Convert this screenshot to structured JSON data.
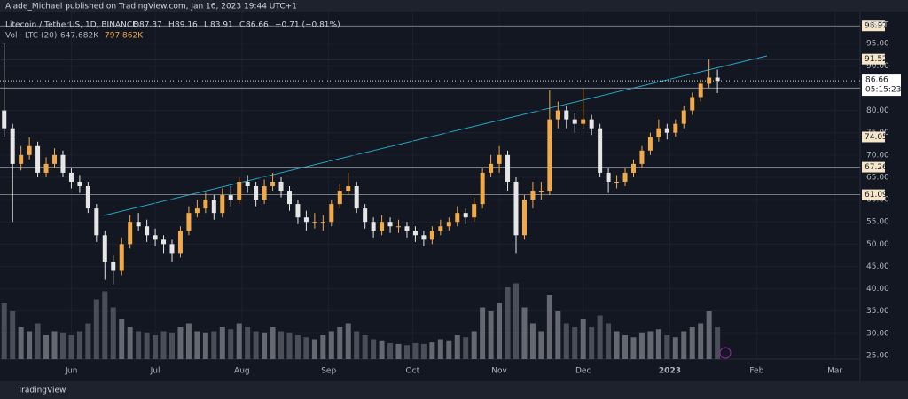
{
  "header": {
    "publisher": "Alade_Michael published on TradingView.com, Jan 16, 2023 19:44 UTC+1",
    "brand": "TradingView"
  },
  "chart_data": {
    "type": "candlestick",
    "symbol": "Litecoin / TetherUS, 1D, BINANCE",
    "legend_values": [
      {
        "label": "O",
        "value": 87.37
      },
      {
        "label": "H",
        "value": 89.16
      },
      {
        "label": "L",
        "value": 83.91
      },
      {
        "label": "C",
        "value": 86.66
      }
    ],
    "change": "−0.71 (−0.81%)",
    "volume_label": "Vol · LTC (20)",
    "volume_ma": "647.682K",
    "volume_last": "797.862K",
    "currency": "USDT",
    "up_color": "#f0a94b",
    "down_color": "#e6e6e6",
    "open": [
      80,
      76,
      68,
      70,
      72,
      66,
      68,
      70,
      66,
      64,
      63,
      58,
      52,
      46,
      44,
      50,
      55,
      54,
      52,
      51,
      50,
      48,
      53,
      57,
      58,
      60,
      57,
      61,
      60,
      64,
      63,
      60,
      63,
      64,
      62,
      59,
      56,
      55,
      55,
      55,
      59,
      62,
      63,
      58,
      55,
      53,
      55,
      54,
      54,
      53,
      52,
      51,
      53,
      54,
      55,
      57,
      56,
      59,
      66,
      68,
      70,
      64,
      52,
      60,
      62,
      62,
      78,
      80,
      78,
      77,
      78,
      76,
      66,
      64,
      64,
      66,
      68,
      71,
      74,
      76,
      75,
      77,
      80,
      83,
      86,
      87.37
    ],
    "high": [
      95,
      77,
      72,
      74,
      73,
      69.5,
      71.5,
      71,
      67,
      65.5,
      64,
      59,
      53,
      47.5,
      51.5,
      56.5,
      57,
      55.5,
      53.5,
      52,
      51,
      54,
      58.5,
      60,
      61.5,
      61,
      62.5,
      63,
      65,
      65.5,
      64,
      64.5,
      66,
      65,
      63,
      60,
      57.5,
      57,
      56.5,
      60,
      63.5,
      66,
      64,
      59,
      56,
      56.5,
      56,
      55.5,
      55,
      54,
      53,
      54,
      55.5,
      56,
      58.5,
      58,
      60.5,
      67,
      70,
      72,
      71,
      65,
      61,
      64,
      64,
      84.5,
      82,
      81,
      79.5,
      85,
      79,
      77,
      67,
      65.5,
      67,
      69,
      72,
      75,
      78,
      77,
      78,
      81,
      84,
      87,
      91.52,
      89.16
    ],
    "low": [
      74,
      55,
      66.5,
      69,
      65,
      65,
      67,
      65,
      62.5,
      61.5,
      57,
      50.5,
      42,
      41,
      43,
      49,
      53,
      50.5,
      49.5,
      48,
      46,
      47,
      52,
      56,
      57,
      55.5,
      56,
      58.5,
      59,
      61.5,
      58.5,
      59,
      62,
      60.5,
      57.5,
      54.5,
      53,
      53.5,
      53,
      54,
      58,
      61,
      57,
      53.5,
      51.5,
      52,
      52.5,
      52.5,
      51.5,
      50.5,
      49.5,
      50,
      52,
      53,
      54,
      54.5,
      55,
      58,
      65,
      66,
      62,
      48,
      51,
      58,
      60,
      61,
      76,
      76,
      75,
      76,
      74.5,
      65,
      61.5,
      62.5,
      63,
      65,
      67,
      70,
      73,
      73.5,
      74,
      76,
      79,
      82,
      85,
      83.91
    ],
    "close": [
      76,
      68,
      70,
      72,
      66,
      68,
      70,
      66,
      64,
      63,
      58,
      52,
      46,
      44,
      50,
      55,
      54,
      52,
      51,
      50,
      48,
      53,
      57,
      58,
      60,
      57,
      61,
      60,
      64,
      63,
      60,
      63,
      64,
      62,
      59,
      56,
      55,
      55,
      55,
      59,
      62,
      63,
      58,
      55,
      53,
      55,
      54,
      54,
      53,
      52,
      51,
      53,
      54,
      55,
      57,
      56,
      59,
      66,
      68,
      70,
      64,
      52,
      60,
      62,
      62,
      78,
      80,
      78,
      77,
      78,
      76,
      66,
      64,
      64,
      66,
      68,
      71,
      74,
      76,
      75,
      77,
      80,
      83,
      86,
      87.37,
      86.66
    ],
    "volume": [
      1400,
      1200,
      800,
      700,
      900,
      600,
      700,
      650,
      600,
      700,
      900,
      1500,
      1700,
      1300,
      1000,
      800,
      700,
      650,
      600,
      700,
      650,
      800,
      900,
      700,
      650,
      700,
      800,
      750,
      900,
      800,
      700,
      650,
      800,
      700,
      650,
      600,
      550,
      500,
      600,
      700,
      800,
      900,
      700,
      600,
      500,
      450,
      400,
      380,
      350,
      400,
      380,
      420,
      500,
      450,
      600,
      550,
      700,
      1300,
      1200,
      1400,
      1800,
      1900,
      1300,
      900,
      700,
      1600,
      1200,
      900,
      800,
      1000,
      800,
      1100,
      900,
      700,
      600,
      550,
      650,
      700,
      750,
      600,
      550,
      700,
      800,
      900,
      1200,
      797.862
    ],
    "xlim": [
      -0.5,
      102
    ],
    "xticks": [
      {
        "value": 8,
        "label": "Jun"
      },
      {
        "value": 18,
        "label": "Jul"
      },
      {
        "value": 28.33,
        "label": "Aug"
      },
      {
        "value": 38.67,
        "label": "Sep"
      },
      {
        "value": 48.67,
        "label": "Oct"
      },
      {
        "value": 59,
        "label": "Nov"
      },
      {
        "value": 69,
        "label": "Dec"
      },
      {
        "value": 79.33,
        "label": "2023"
      },
      {
        "value": 89.67,
        "label": "Feb"
      },
      {
        "value": 99,
        "label": "Mar"
      }
    ],
    "ylim": [
      24.2,
      102.2
    ],
    "yticks": [
      {
        "value": 25,
        "label": "25.00"
      },
      {
        "value": 30,
        "label": "30.00"
      },
      {
        "value": 35,
        "label": "35.00"
      },
      {
        "value": 40,
        "label": "40.00"
      },
      {
        "value": 45,
        "label": "45.00"
      },
      {
        "value": 50,
        "label": "50.00"
      },
      {
        "value": 55,
        "label": "55.00"
      },
      {
        "value": 60,
        "label": "60.00"
      },
      {
        "value": 65,
        "label": "65.00"
      },
      {
        "value": 70,
        "label": "70.00"
      },
      {
        "value": 75,
        "label": "75.00"
      },
      {
        "value": 80,
        "label": "80.00"
      },
      {
        "value": 85,
        "label": "85.00"
      },
      {
        "value": 90,
        "label": "90.00"
      },
      {
        "value": 95,
        "label": "95.00"
      }
    ],
    "levels": [
      98.97,
      91.52,
      85.03,
      74.05,
      67.26,
      61.09
    ],
    "last_price": 86.66,
    "countdown": "05:15:23"
  }
}
